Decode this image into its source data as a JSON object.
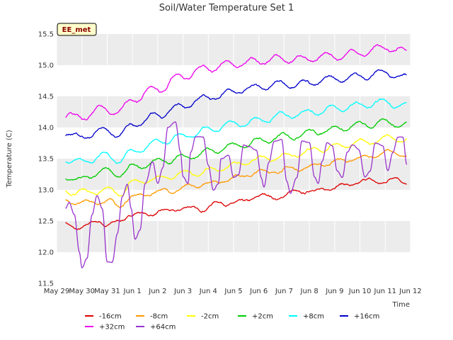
{
  "chart_data": {
    "type": "line",
    "title": "Soil/Water Temperature Set 1",
    "xlabel": "Time",
    "ylabel": "Temperature (C)",
    "badge": "EE_met",
    "ylim": [
      11.5,
      15.5
    ],
    "xlim": [
      0,
      14
    ],
    "y_ticks": [
      11.5,
      12.0,
      12.5,
      13.0,
      13.5,
      14.0,
      14.5,
      15.0,
      15.5
    ],
    "y_tick_labels": [
      "11.5",
      "12.0",
      "12.5",
      "13.0",
      "13.5",
      "14.0",
      "14.5",
      "15.0",
      "15.5"
    ],
    "x_ticks": [
      0,
      1,
      2,
      3,
      4,
      5,
      6,
      7,
      8,
      9,
      10,
      11,
      12,
      13,
      14
    ],
    "x_tick_labels": [
      "May 29",
      "May 30",
      "May 31",
      "Jun 1",
      "Jun 2",
      "Jun 3",
      "Jun 4",
      "Jun 5",
      "Jun 6",
      "Jun 7",
      "Jun 8",
      "Jun 9",
      "Jun 10",
      "Jun 11",
      "Jun 12"
    ],
    "series": [
      {
        "name": "-16cm",
        "color": "#dd0000",
        "x_start": 0.35,
        "x_end": 13.85,
        "base_start": 12.45,
        "base_end": 13.16,
        "amp": 0.035,
        "noise": 0.02,
        "anchors": [
          [
            0.35,
            12.45
          ],
          [
            1.0,
            12.38
          ],
          [
            1.7,
            12.52
          ],
          [
            2.0,
            12.42
          ],
          [
            3.0,
            12.6
          ],
          [
            4.0,
            12.63
          ],
          [
            5.0,
            12.7
          ],
          [
            5.8,
            12.7
          ],
          [
            6.5,
            12.8
          ],
          [
            7.2,
            12.78
          ],
          [
            8.0,
            12.9
          ],
          [
            8.8,
            12.88
          ],
          [
            9.5,
            12.97
          ],
          [
            10.2,
            12.98
          ],
          [
            11.0,
            13.05
          ],
          [
            11.8,
            13.1
          ],
          [
            12.5,
            13.15
          ],
          [
            13.0,
            13.12
          ],
          [
            13.5,
            13.2
          ],
          [
            13.85,
            13.12
          ]
        ]
      },
      {
        "name": "-8cm",
        "color": "#ff9900",
        "x_start": 0.35,
        "x_end": 13.85,
        "base_start": 12.8,
        "base_end": 13.58,
        "amp": 0.04,
        "noise": 0.02,
        "anchors": [
          [
            0.35,
            12.82
          ],
          [
            1.0,
            12.78
          ],
          [
            2.0,
            12.82
          ],
          [
            2.4,
            12.75
          ],
          [
            3.0,
            12.88
          ],
          [
            4.0,
            12.97
          ],
          [
            5.0,
            13.02
          ],
          [
            6.0,
            13.1
          ],
          [
            7.0,
            13.2
          ],
          [
            8.0,
            13.28
          ],
          [
            9.0,
            13.32
          ],
          [
            10.0,
            13.37
          ],
          [
            11.0,
            13.45
          ],
          [
            12.0,
            13.5
          ],
          [
            13.0,
            13.6
          ],
          [
            13.85,
            13.55
          ]
        ]
      },
      {
        "name": "-2cm",
        "color": "#ffff00",
        "x_start": 0.35,
        "x_end": 13.85,
        "base_start": 12.98,
        "base_end": 13.85,
        "amp": 0.05,
        "noise": 0.02,
        "anchors": [
          [
            0.35,
            13.0
          ],
          [
            1.0,
            12.95
          ],
          [
            2.0,
            13.0
          ],
          [
            2.5,
            12.95
          ],
          [
            3.0,
            13.1
          ],
          [
            4.0,
            13.18
          ],
          [
            5.0,
            13.25
          ],
          [
            6.0,
            13.3
          ],
          [
            7.0,
            13.4
          ],
          [
            8.0,
            13.48
          ],
          [
            9.0,
            13.55
          ],
          [
            10.0,
            13.62
          ],
          [
            11.0,
            13.7
          ],
          [
            12.0,
            13.75
          ],
          [
            13.0,
            13.82
          ],
          [
            13.85,
            13.8
          ]
        ]
      },
      {
        "name": "+2cm",
        "color": "#00cc00",
        "x_start": 0.35,
        "x_end": 13.85,
        "base_start": 13.2,
        "base_end": 14.05,
        "amp": 0.05,
        "noise": 0.02,
        "anchors": [
          [
            0.35,
            13.22
          ],
          [
            0.8,
            13.15
          ],
          [
            2.0,
            13.3
          ],
          [
            2.5,
            13.25
          ],
          [
            3.0,
            13.35
          ],
          [
            4.0,
            13.45
          ],
          [
            5.0,
            13.52
          ],
          [
            6.0,
            13.6
          ],
          [
            7.0,
            13.7
          ],
          [
            8.0,
            13.78
          ],
          [
            9.0,
            13.85
          ],
          [
            10.0,
            13.92
          ],
          [
            11.0,
            13.98
          ],
          [
            12.0,
            14.03
          ],
          [
            13.0,
            14.08
          ],
          [
            13.85,
            14.05
          ]
        ]
      },
      {
        "name": "+8cm",
        "color": "#00ffff",
        "x_start": 0.35,
        "x_end": 13.85,
        "base_start": 13.48,
        "base_end": 14.35,
        "amp": 0.05,
        "noise": 0.02,
        "anchors": [
          [
            0.35,
            13.5
          ],
          [
            0.8,
            13.45
          ],
          [
            2.0,
            13.55
          ],
          [
            2.5,
            13.48
          ],
          [
            3.0,
            13.62
          ],
          [
            4.0,
            13.75
          ],
          [
            5.0,
            13.85
          ],
          [
            6.0,
            13.95
          ],
          [
            7.0,
            14.05
          ],
          [
            8.0,
            14.12
          ],
          [
            9.0,
            14.2
          ],
          [
            10.0,
            14.25
          ],
          [
            11.0,
            14.3
          ],
          [
            12.0,
            14.35
          ],
          [
            13.0,
            14.4
          ],
          [
            13.85,
            14.35
          ]
        ]
      },
      {
        "name": "+16cm",
        "color": "#0000cc",
        "x_start": 0.35,
        "x_end": 13.85,
        "base_start": 13.88,
        "base_end": 14.85,
        "amp": 0.05,
        "noise": 0.02,
        "anchors": [
          [
            0.35,
            13.9
          ],
          [
            0.8,
            13.85
          ],
          [
            2.0,
            13.95
          ],
          [
            2.5,
            13.88
          ],
          [
            3.0,
            14.05
          ],
          [
            4.0,
            14.2
          ],
          [
            5.0,
            14.35
          ],
          [
            6.0,
            14.48
          ],
          [
            7.0,
            14.58
          ],
          [
            8.0,
            14.65
          ],
          [
            9.0,
            14.7
          ],
          [
            10.0,
            14.72
          ],
          [
            11.0,
            14.78
          ],
          [
            12.0,
            14.82
          ],
          [
            13.0,
            14.88
          ],
          [
            13.85,
            14.82
          ]
        ]
      },
      {
        "name": "+32cm",
        "color": "#ee00ee",
        "x_start": 0.35,
        "x_end": 13.85,
        "base_start": 14.2,
        "base_end": 15.25,
        "amp": 0.06,
        "noise": 0.02,
        "anchors": [
          [
            0.35,
            14.2
          ],
          [
            0.8,
            14.15
          ],
          [
            2.0,
            14.3
          ],
          [
            2.5,
            14.25
          ],
          [
            3.0,
            14.45
          ],
          [
            4.0,
            14.62
          ],
          [
            5.0,
            14.82
          ],
          [
            6.0,
            14.95
          ],
          [
            7.0,
            15.02
          ],
          [
            8.0,
            15.07
          ],
          [
            9.0,
            15.1
          ],
          [
            10.0,
            15.1
          ],
          [
            11.0,
            15.15
          ],
          [
            12.0,
            15.2
          ],
          [
            13.0,
            15.28
          ],
          [
            13.85,
            15.22
          ]
        ]
      },
      {
        "name": "+64cm",
        "color": "#9933cc",
        "x_start": 0.35,
        "x_end": 13.85,
        "base_start": 12.7,
        "base_end": 13.4,
        "amp": 0,
        "noise": 0.01,
        "anchors": [
          [
            0.35,
            12.7
          ],
          [
            0.5,
            12.8
          ],
          [
            0.7,
            12.6
          ],
          [
            0.9,
            12.0
          ],
          [
            1.0,
            11.75
          ],
          [
            1.2,
            11.9
          ],
          [
            1.4,
            12.6
          ],
          [
            1.6,
            12.9
          ],
          [
            1.8,
            12.7
          ],
          [
            2.0,
            11.85
          ],
          [
            2.2,
            11.85
          ],
          [
            2.4,
            12.3
          ],
          [
            2.6,
            12.9
          ],
          [
            2.8,
            13.1
          ],
          [
            2.95,
            12.7
          ],
          [
            3.1,
            12.2
          ],
          [
            3.3,
            12.35
          ],
          [
            3.5,
            13.1
          ],
          [
            3.8,
            13.45
          ],
          [
            4.0,
            13.1
          ],
          [
            4.2,
            13.35
          ],
          [
            4.4,
            14.0
          ],
          [
            4.7,
            14.08
          ],
          [
            4.9,
            13.6
          ],
          [
            5.0,
            13.2
          ],
          [
            5.2,
            13.1
          ],
          [
            5.3,
            13.6
          ],
          [
            5.5,
            13.85
          ],
          [
            5.8,
            13.85
          ],
          [
            6.0,
            13.4
          ],
          [
            6.2,
            13.0
          ],
          [
            6.4,
            13.1
          ],
          [
            6.5,
            13.5
          ],
          [
            6.8,
            13.55
          ],
          [
            7.0,
            13.2
          ],
          [
            7.2,
            13.25
          ],
          [
            7.4,
            13.72
          ],
          [
            7.6,
            13.7
          ],
          [
            7.9,
            13.65
          ],
          [
            8.1,
            13.2
          ],
          [
            8.2,
            13.05
          ],
          [
            8.4,
            13.45
          ],
          [
            8.6,
            13.78
          ],
          [
            8.9,
            13.8
          ],
          [
            9.1,
            13.15
          ],
          [
            9.25,
            12.95
          ],
          [
            9.5,
            13.2
          ],
          [
            9.7,
            13.78
          ],
          [
            10.0,
            13.75
          ],
          [
            10.2,
            13.2
          ],
          [
            10.35,
            13.1
          ],
          [
            10.5,
            13.45
          ],
          [
            10.7,
            13.75
          ],
          [
            10.9,
            13.7
          ],
          [
            11.1,
            13.3
          ],
          [
            11.3,
            13.2
          ],
          [
            11.5,
            13.6
          ],
          [
            11.7,
            13.72
          ],
          [
            11.95,
            13.65
          ],
          [
            12.2,
            13.2
          ],
          [
            12.4,
            13.3
          ],
          [
            12.6,
            13.75
          ],
          [
            12.9,
            13.7
          ],
          [
            13.1,
            13.3
          ],
          [
            13.3,
            13.6
          ],
          [
            13.5,
            13.85
          ],
          [
            13.7,
            13.85
          ],
          [
            13.85,
            13.4
          ]
        ]
      }
    ]
  }
}
